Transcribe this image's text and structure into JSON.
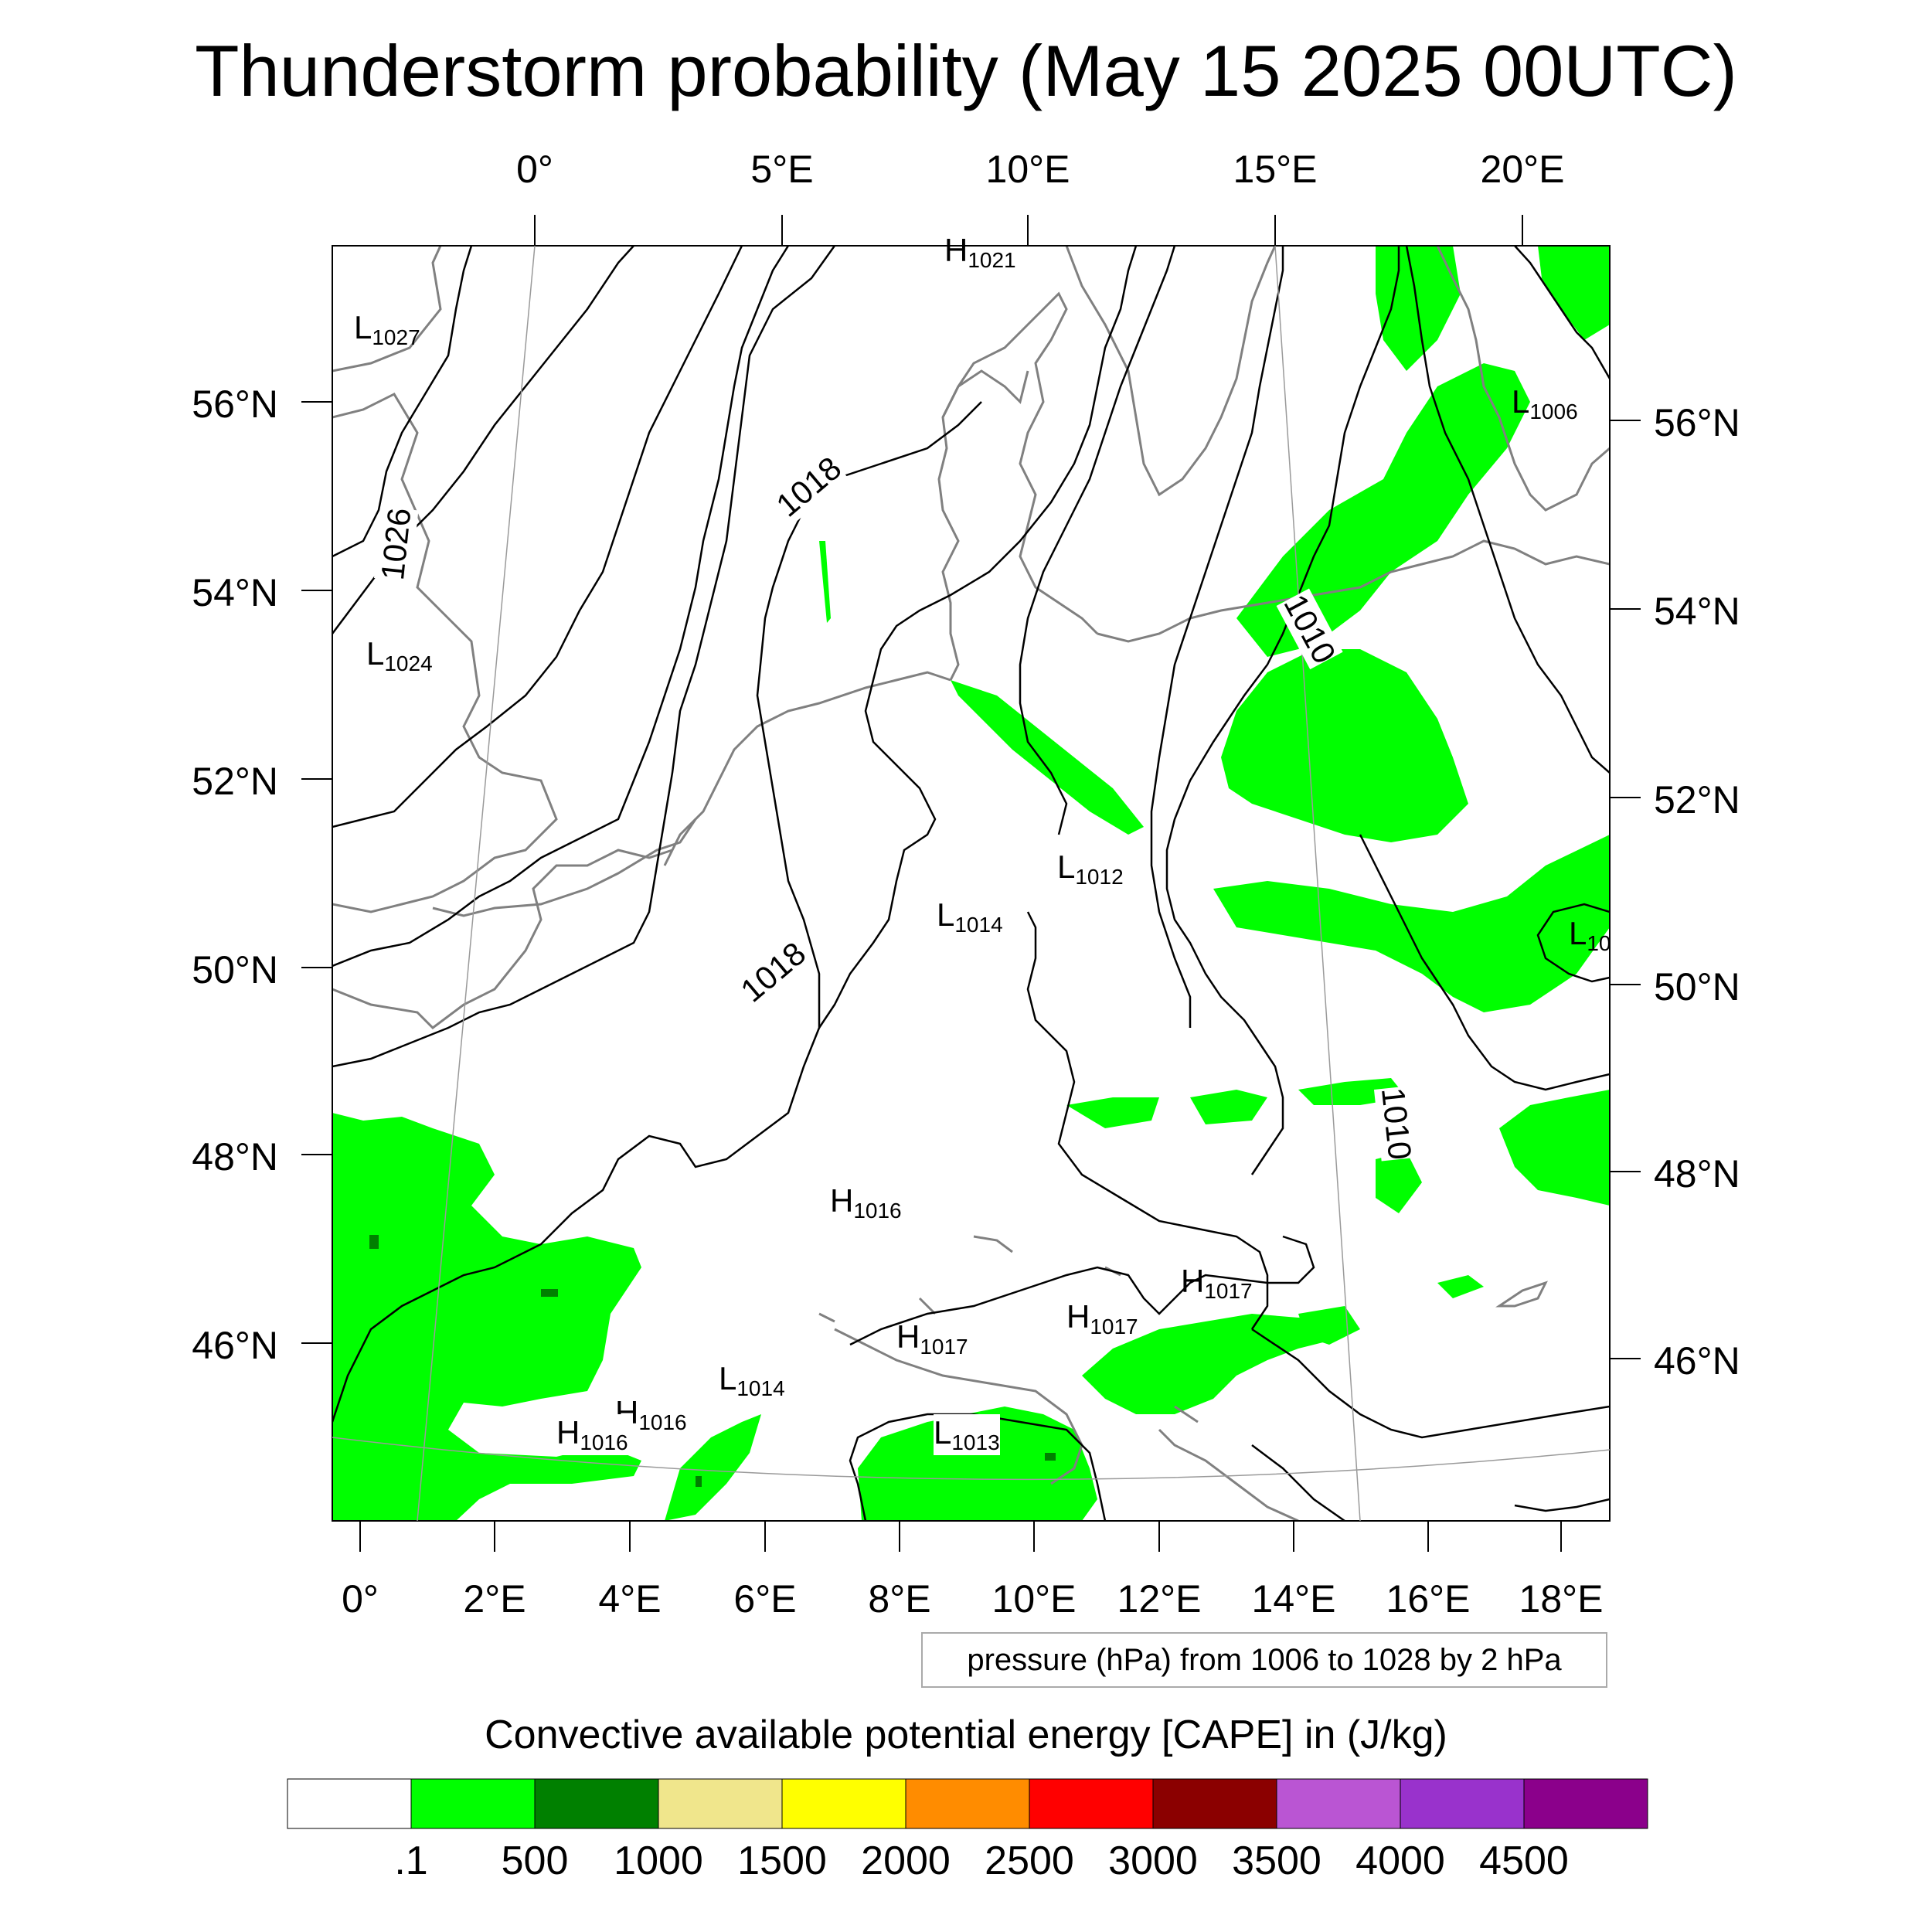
{
  "title": "Thunderstorm probability (May 15 2025 00UTC)",
  "top_lon_labels": [
    "0°",
    "5°E",
    "10°E",
    "15°E",
    "20°E"
  ],
  "bottom_lon_labels": [
    "0°",
    "2°E",
    "4°E",
    "6°E",
    "8°E",
    "10°E",
    "12°E",
    "14°E",
    "16°E",
    "18°E"
  ],
  "left_lat_labels": [
    "56°N",
    "54°N",
    "52°N",
    "50°N",
    "48°N",
    "46°N"
  ],
  "right_lat_labels": [
    "56°N",
    "54°N",
    "52°N",
    "50°N",
    "48°N",
    "46°N"
  ],
  "pressure_centers": [
    {
      "letter": "H",
      "value": "1021"
    },
    {
      "letter": "L",
      "value": "1027"
    },
    {
      "letter": "L",
      "value": "1024"
    },
    {
      "letter": "L",
      "value": "1006"
    },
    {
      "letter": "L",
      "value": "1012"
    },
    {
      "letter": "L",
      "value": "1014"
    },
    {
      "letter": "L",
      "value": "10"
    },
    {
      "letter": "H",
      "value": "1016"
    },
    {
      "letter": "H",
      "value": "1017"
    },
    {
      "letter": "H",
      "value": "1017"
    },
    {
      "letter": "H",
      "value": "1017"
    },
    {
      "letter": "L",
      "value": "1014"
    },
    {
      "letter": "H",
      "value": "1016"
    },
    {
      "letter": "H",
      "value": "1016"
    },
    {
      "letter": "L",
      "value": "1013"
    }
  ],
  "isobar_labels": [
    "1026",
    "1018",
    "1018",
    "1010",
    "1010"
  ],
  "contour_info": "pressure (hPa) from 1006 to 1028 by 2 hPa",
  "colorbar": {
    "title": "Convective available potential energy [CAPE] in (J/kg)",
    "labels": [
      ".1",
      "500",
      "1000",
      "1500",
      "2000",
      "2500",
      "3000",
      "3500",
      "4000",
      "4500"
    ],
    "colors": [
      "#ffffff",
      "#00ff00",
      "#008000",
      "#f0e68c",
      "#ffff00",
      "#ff8c00",
      "#ff0000",
      "#8b0000",
      "#ba55d3",
      "#9932cc",
      "#8b008b"
    ]
  },
  "colors": {
    "cape_low": "#00ff00",
    "cape_mid": "#008000",
    "coastline": "#808080",
    "isobar": "#000000"
  }
}
